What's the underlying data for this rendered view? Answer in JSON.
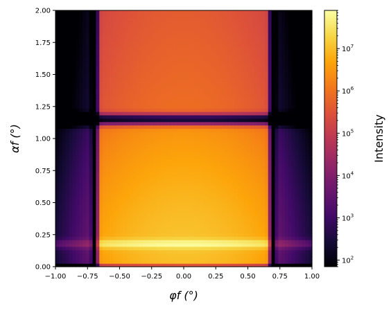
{
  "chart_data": {
    "type": "heatmap",
    "title": "",
    "xlabel": "φf (°)",
    "ylabel": "αf (°)",
    "xlim": [
      -1.0,
      1.0
    ],
    "ylim": [
      0.0,
      2.0
    ],
    "x_ticks": [
      {
        "value": -1.0,
        "label": "−1.00"
      },
      {
        "value": -0.75,
        "label": "−0.75"
      },
      {
        "value": -0.5,
        "label": "−0.50"
      },
      {
        "value": -0.25,
        "label": "−0.25"
      },
      {
        "value": 0.0,
        "label": "0.00"
      },
      {
        "value": 0.25,
        "label": "0.25"
      },
      {
        "value": 0.5,
        "label": "0.50"
      },
      {
        "value": 0.75,
        "label": "0.75"
      },
      {
        "value": 1.0,
        "label": "1.00"
      }
    ],
    "y_ticks": [
      {
        "value": 0.0,
        "label": "0.00"
      },
      {
        "value": 0.25,
        "label": "0.25"
      },
      {
        "value": 0.5,
        "label": "0.50"
      },
      {
        "value": 0.75,
        "label": "0.75"
      },
      {
        "value": 1.0,
        "label": "1.00"
      },
      {
        "value": 1.25,
        "label": "1.25"
      },
      {
        "value": 1.5,
        "label": "1.50"
      },
      {
        "value": 1.75,
        "label": "1.75"
      },
      {
        "value": 2.0,
        "label": "2.00"
      }
    ],
    "grid": false,
    "colormap": "inferno",
    "colorbar": {
      "label": "Intensity",
      "scale": "log",
      "range": [
        70,
        80000000
      ],
      "ticks": [
        {
          "value": 100,
          "base": "10",
          "exp": "2"
        },
        {
          "value": 1000,
          "base": "10",
          "exp": "3"
        },
        {
          "value": 10000,
          "base": "10",
          "exp": "4"
        },
        {
          "value": 100000,
          "base": "10",
          "exp": "5"
        },
        {
          "value": 1000000,
          "base": "10",
          "exp": "6"
        },
        {
          "value": 10000000,
          "base": "10",
          "exp": "7"
        }
      ]
    },
    "features": {
      "vertical_minima_x": [
        -0.69,
        0.69
      ],
      "horizontal_minimum_y": 1.15,
      "bright_band_y": 0.18,
      "peak_intensity": 80000000,
      "min_intensity": 70
    }
  }
}
